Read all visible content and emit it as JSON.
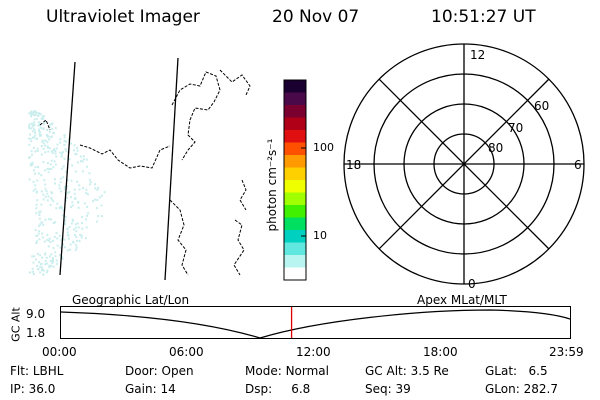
{
  "header": {
    "title": "Ultraviolet Imager",
    "date": "20 Nov 07",
    "time": "10:51:27 UT"
  },
  "colorbar": {
    "unit_label": "photon cm⁻²s⁻¹",
    "tick_labels": [
      "100",
      "10"
    ],
    "colors": [
      "#1a0030",
      "#4a0a4a",
      "#7a0030",
      "#b00018",
      "#e01010",
      "#ff5000",
      "#ff9a00",
      "#ffd000",
      "#f0ff00",
      "#a0ff00",
      "#40f000",
      "#00e060",
      "#00d0c0",
      "#60e8e0",
      "#b8f4f0",
      "#ffffff"
    ]
  },
  "polar_plot": {
    "mlt_labels": {
      "top": "12",
      "left": "18",
      "right": "6",
      "bottom": "0"
    },
    "lat_labels": [
      "60",
      "70",
      "80"
    ]
  },
  "timeline": {
    "left_label": "Geographic Lat/Lon",
    "right_label": "Apex MLat/MLT",
    "axis_label": "GC Alt",
    "y_ticks": [
      "9.0",
      "1.8"
    ],
    "x_ticks": [
      "00:00",
      "06:00",
      "12:00",
      "18:00",
      "23:59"
    ],
    "current_time_fraction": 0.453,
    "marker_color": "#e00000"
  },
  "status": {
    "flt_label": "Flt:",
    "flt_value": "LBHL",
    "door_label": "Door:",
    "door_value": "Open",
    "mode_label": "Mode:",
    "mode_value": "Normal",
    "gcalt_label": "GC Alt:",
    "gcalt_value": "3.5 Re",
    "glat_label": "GLat:",
    "glat_value": "6.5",
    "ip_label": "IP:",
    "ip_value": "36.0",
    "gain_label": "Gain:",
    "gain_value": "14",
    "dsp_label": "Dsp:",
    "dsp_value": "6.8",
    "seq_label": "Seq:",
    "seq_value": "39",
    "glon_label": "GLon:",
    "glon_value": "282.7"
  }
}
